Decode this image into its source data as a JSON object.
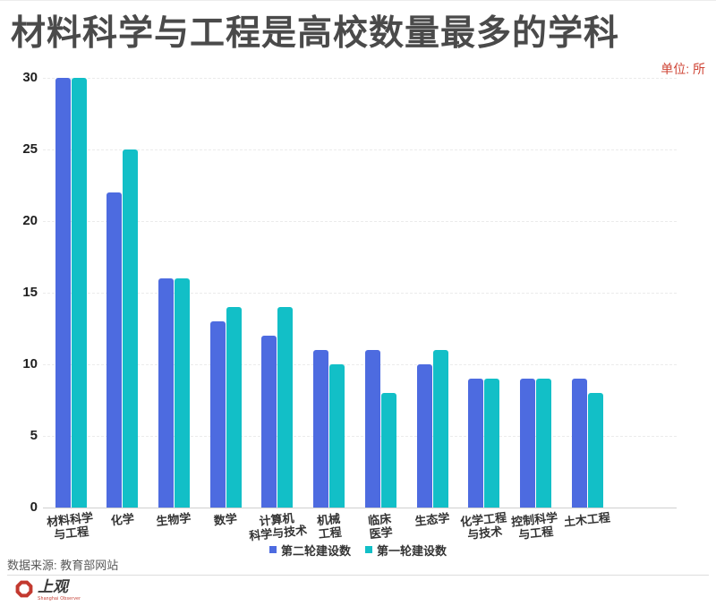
{
  "chart_data": {
    "type": "bar",
    "title": "材料科学与工程是高校数量最多的学科",
    "unit_label": "单位: 所",
    "unit_label_color": "#cf4536",
    "categories": [
      "材料科学与工程",
      "化学",
      "生物学",
      "数学",
      "计算机科学与技术",
      "机械工程",
      "临床医学",
      "生态学",
      "化学工程与技术",
      "控制科学与工程",
      "土木工程"
    ],
    "categories_display": [
      [
        "材料科学",
        "与工程"
      ],
      [
        "化学"
      ],
      [
        "生物学"
      ],
      [
        "数学"
      ],
      [
        "计算机",
        "科学与技术"
      ],
      [
        "机械",
        "工程"
      ],
      [
        "临床",
        "医学"
      ],
      [
        "生态学"
      ],
      [
        "化学工程",
        "与技术"
      ],
      [
        "控制科学",
        "与工程"
      ],
      [
        "土木工程"
      ]
    ],
    "series": [
      {
        "name": "第二轮建设数",
        "color": "#4d6be0",
        "values": [
          30,
          22,
          16,
          13,
          12,
          11,
          11,
          10,
          9,
          9,
          9
        ]
      },
      {
        "name": "第一轮建设数",
        "color": "#12bfc7",
        "values": [
          30,
          25,
          16,
          14,
          14,
          10,
          8,
          11,
          9,
          9,
          8
        ]
      }
    ],
    "yticks": [
      0,
      5,
      10,
      15,
      20,
      25,
      30
    ],
    "ylim": [
      0,
      30
    ],
    "grid": true,
    "legend_position": "bottom"
  },
  "footer": {
    "source": "数据来源: 教育部网站",
    "logo_text": "上观",
    "logo_subtext": "Shanghai Observer"
  }
}
